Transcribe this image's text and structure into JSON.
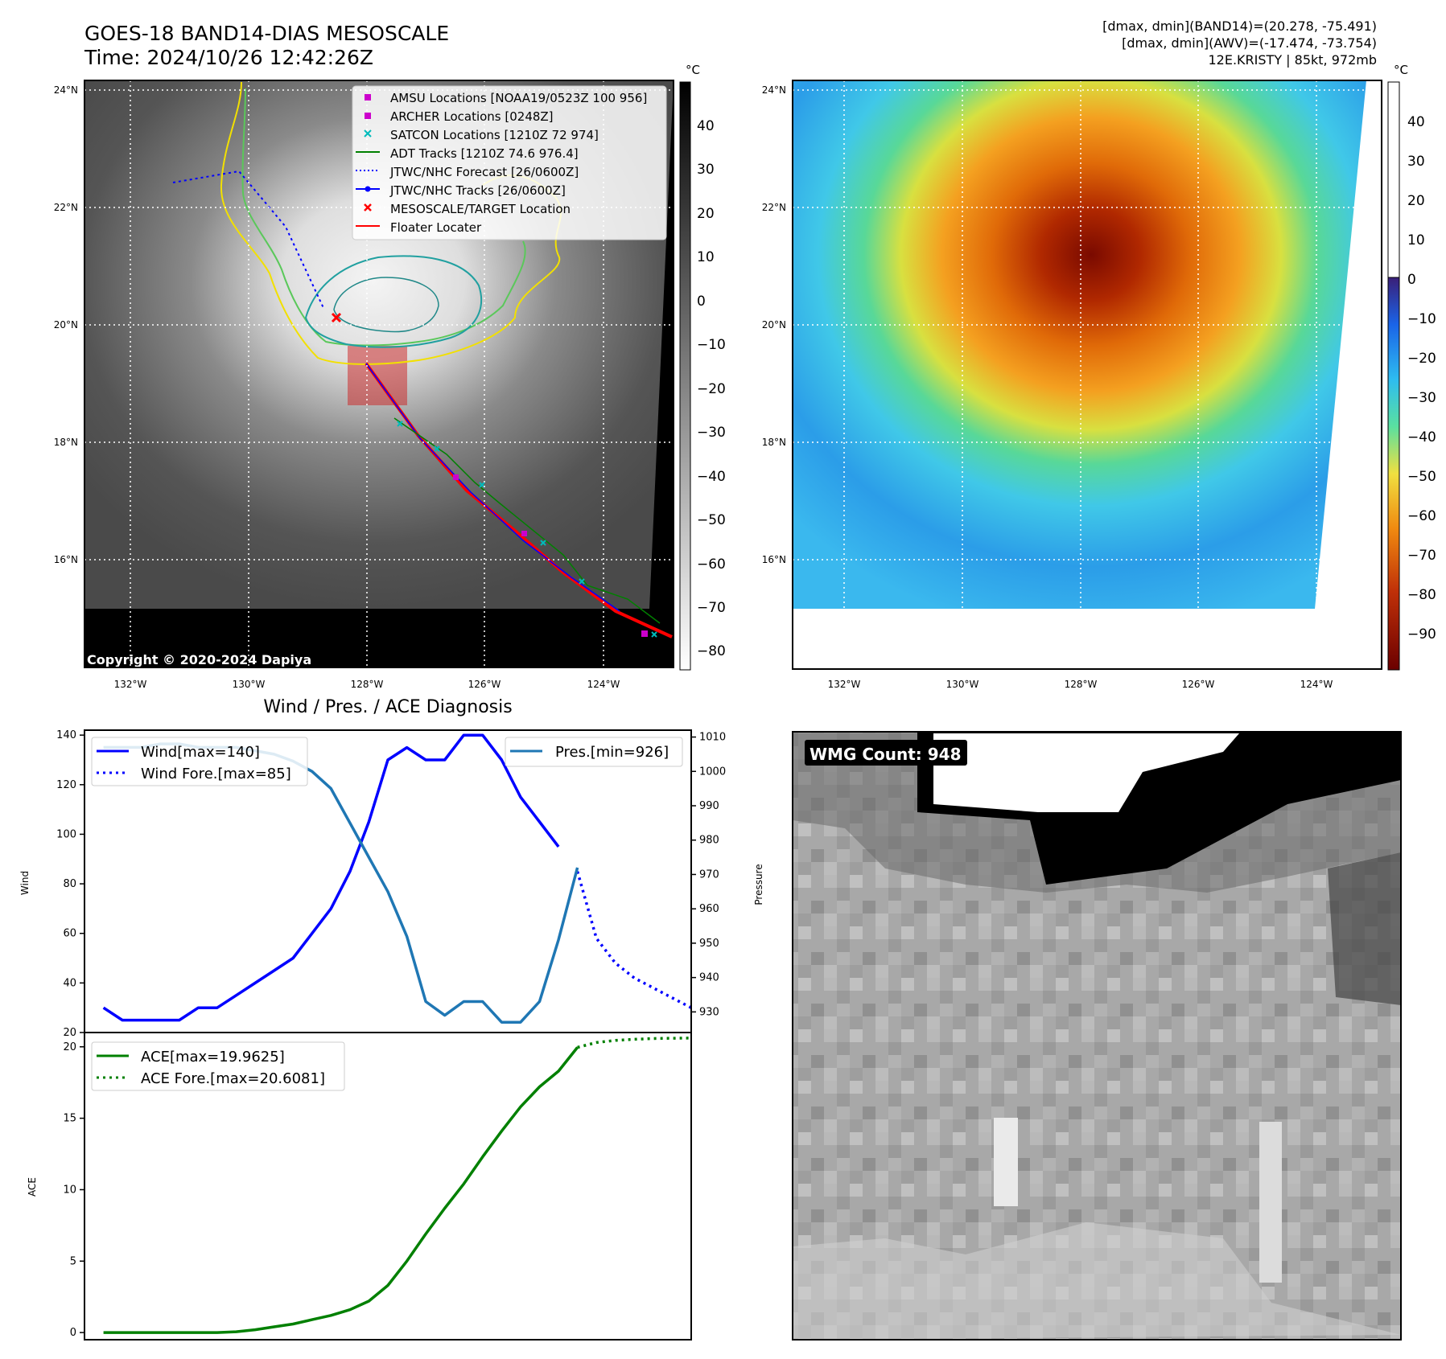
{
  "header": {
    "title_line1": "GOES-18 BAND14-DIAS MESOSCALE",
    "title_line2": "Time: 2024/10/26 12:42:26Z",
    "info_line1": "[dmax, dmin](BAND14)=(20.278, -75.491)",
    "info_line2": "[dmax, dmin](AWV)=(-17.474, -73.754)",
    "info_line3": "12E.KRISTY | 85kt, 972mb"
  },
  "map_axes": {
    "lat_labels": [
      "24°N",
      "22°N",
      "20°N",
      "18°N",
      "16°N"
    ],
    "lon_labels": [
      "132°W",
      "130°W",
      "128°W",
      "126°W",
      "124°W"
    ]
  },
  "ir_panel": {
    "legend": [
      {
        "label": "AMSU Locations [NOAA19/0523Z 100 956]",
        "marker": "square",
        "color": "#cc00cc"
      },
      {
        "label": "ARCHER Locations [0248Z]",
        "marker": "square",
        "color": "#cc00cc"
      },
      {
        "label": "SATCON Locations [1210Z 72 974]",
        "marker": "x",
        "color": "#00bbbb"
      },
      {
        "label": "ADT Tracks [1210Z 74.6 976.4]",
        "marker": "line",
        "color": "#008000"
      },
      {
        "label": "JTWC/NHC Forecast [26/0600Z]",
        "marker": "dotted",
        "color": "#0000ff"
      },
      {
        "label": "JTWC/NHC Tracks [26/0600Z]",
        "marker": "line-dot",
        "color": "#0000ff"
      },
      {
        "label": "MESOSCALE/TARGET Location",
        "marker": "x",
        "color": "#ff0000"
      },
      {
        "label": "Floater Locater",
        "marker": "line",
        "color": "#ff0000"
      }
    ],
    "copyright": "Copyright © 2020-2024 Dapiya",
    "colorbar_unit": "°C",
    "colorbar_ticks": [
      "40",
      "30",
      "20",
      "10",
      "0",
      "−10",
      "−20",
      "−30",
      "−40",
      "−50",
      "−60",
      "−70",
      "−80"
    ]
  },
  "awv_panel": {
    "colorbar_unit": "°C",
    "colorbar_ticks": [
      "40",
      "30",
      "20",
      "10",
      "0",
      "−10",
      "−20",
      "−30",
      "−40",
      "−50",
      "−60",
      "−70",
      "−80",
      "−90"
    ]
  },
  "wmg_panel": {
    "label": "WMG Count: 948"
  },
  "colors": {
    "wind": "#0000ff",
    "pressure": "#1f77b4",
    "ace": "#008000",
    "track_red": "#ff0000"
  },
  "chart_data": [
    {
      "type": "line",
      "title": "Wind / Pres. / ACE Diagnosis",
      "ylabel": "Wind",
      "y2label": "Pressure",
      "ylim": [
        20,
        142
      ],
      "y2lim": [
        924,
        1012
      ],
      "yticks": [
        20,
        40,
        60,
        80,
        100,
        120,
        140
      ],
      "y2ticks": [
        930,
        940,
        950,
        960,
        970,
        980,
        990,
        1000,
        1010
      ],
      "xlim": [
        -1,
        31
      ],
      "series": [
        {
          "name": "Wind[max=140]",
          "axis": "left",
          "style": "solid",
          "x": [
            0,
            1,
            2,
            3,
            4,
            5,
            6,
            7,
            8,
            9,
            10,
            11,
            12,
            13,
            14,
            15,
            16,
            17,
            18,
            19,
            20,
            21,
            22,
            23,
            24
          ],
          "values": [
            30,
            25,
            25,
            25,
            25,
            30,
            30,
            35,
            40,
            45,
            50,
            60,
            70,
            85,
            105,
            130,
            135,
            130,
            130,
            140,
            140,
            130,
            115,
            105,
            95
          ]
        },
        {
          "name": "Wind Fore.[max=85]",
          "axis": "left",
          "style": "dotted",
          "x": [
            25,
            26,
            27,
            28,
            29,
            30,
            31
          ],
          "values": [
            85,
            58,
            48,
            42,
            38,
            34,
            30
          ]
        },
        {
          "name": "Pres.[min=926]",
          "axis": "right",
          "style": "solid",
          "x": [
            0,
            1,
            2,
            3,
            4,
            5,
            6,
            7,
            8,
            9,
            10,
            11,
            12,
            13,
            14,
            15,
            16,
            17,
            18,
            19,
            20,
            21,
            22,
            23,
            24,
            25
          ],
          "values": [
            1007,
            1007,
            1007,
            1008,
            1008,
            1007,
            1007,
            1007,
            1006,
            1005,
            1003,
            1000,
            995,
            985,
            975,
            965,
            952,
            933,
            929,
            933,
            933,
            927,
            927,
            933,
            951,
            972
          ]
        }
      ]
    },
    {
      "type": "line",
      "ylabel": "ACE",
      "ylim": [
        -0.5,
        21
      ],
      "yticks": [
        0,
        5,
        10,
        15,
        20
      ],
      "xlim": [
        -1,
        31
      ],
      "series": [
        {
          "name": "ACE[max=19.9625]",
          "style": "solid",
          "x": [
            0,
            1,
            2,
            3,
            4,
            5,
            6,
            7,
            8,
            9,
            10,
            11,
            12,
            13,
            14,
            15,
            16,
            17,
            18,
            19,
            20,
            21,
            22,
            23,
            24,
            25
          ],
          "values": [
            0,
            0,
            0,
            0,
            0,
            0,
            0,
            0.06,
            0.2,
            0.4,
            0.6,
            0.9,
            1.2,
            1.6,
            2.2,
            3.3,
            5.0,
            6.9,
            8.7,
            10.4,
            12.3,
            14.1,
            15.8,
            17.2,
            18.3,
            19.96
          ]
        },
        {
          "name": "ACE Fore.[max=20.6081]",
          "style": "dotted",
          "x": [
            25,
            26,
            27,
            28,
            29,
            30,
            31
          ],
          "values": [
            19.96,
            20.3,
            20.45,
            20.53,
            20.58,
            20.6,
            20.61
          ]
        }
      ]
    }
  ]
}
